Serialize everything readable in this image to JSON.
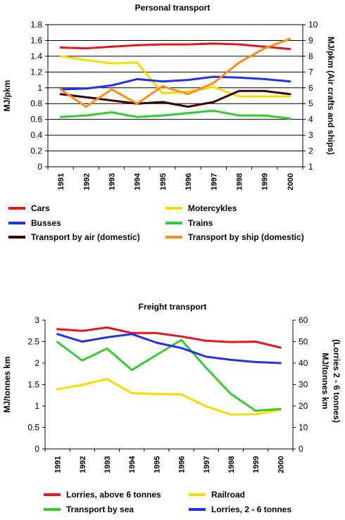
{
  "chart_data": [
    {
      "type": "line",
      "title": "Personal transport",
      "ylabel": "MJ/pkm",
      "y2label": "MJ/pkm (Air crafts and ships)",
      "ylim": [
        0,
        1.8
      ],
      "y_ticks": [
        "0",
        "0.2",
        "0.4",
        "0.6",
        "0.8",
        "1",
        "1.2",
        "1.4",
        "1.6",
        "1.8"
      ],
      "y2lim": [
        1,
        10
      ],
      "y2_ticks": [
        "1",
        "2",
        "3",
        "4",
        "5",
        "6",
        "7",
        "8",
        "9",
        "10"
      ],
      "categories": [
        "1991",
        "1992",
        "1993",
        "1994",
        "1995",
        "1996",
        "1997",
        "1998",
        "1999",
        "2000"
      ],
      "grid": "horizontal",
      "legend": "bottom",
      "series": [
        {
          "name": "Cars",
          "axis": "left",
          "color": "#e8161b",
          "values": [
            1.51,
            1.5,
            1.52,
            1.54,
            1.55,
            1.55,
            1.56,
            1.55,
            1.52,
            1.49
          ]
        },
        {
          "name": "Motercykles",
          "axis": "left",
          "color": "#ffd700",
          "values": [
            1.4,
            1.35,
            1.31,
            1.32,
            0.93,
            0.95,
            1.01,
            0.89,
            0.89,
            0.89
          ]
        },
        {
          "name": "Busses",
          "axis": "left",
          "color": "#2233e6",
          "values": [
            0.98,
            0.99,
            1.03,
            1.11,
            1.08,
            1.1,
            1.14,
            1.13,
            1.11,
            1.08
          ]
        },
        {
          "name": "Trains",
          "axis": "left",
          "color": "#33cc33",
          "values": [
            0.63,
            0.65,
            0.69,
            0.63,
            0.65,
            0.68,
            0.71,
            0.65,
            0.65,
            0.61
          ]
        },
        {
          "name": "Transport by air (domestic)",
          "axis": "right",
          "color": "#3d0000",
          "values": [
            5.6,
            5.4,
            5.2,
            5.0,
            5.1,
            4.8,
            5.1,
            5.8,
            5.8,
            5.6
          ]
        },
        {
          "name": "Transport by ship (domestic)",
          "axis": "right",
          "color": "#ff8c1a",
          "values": [
            5.9,
            4.8,
            5.9,
            5.0,
            6.1,
            5.6,
            6.3,
            7.6,
            8.5,
            9.1
          ]
        }
      ]
    },
    {
      "type": "line",
      "title": "Freight transport",
      "ylabel": "MJ/tonnes km",
      "y2label": "MJ/tonnes km (Lorries 2 - 6 tonnes)",
      "ylim": [
        0,
        3
      ],
      "y_ticks": [
        "0",
        "0.5",
        "1",
        "1.5",
        "2",
        "2.5",
        "3"
      ],
      "y2lim": [
        0,
        60
      ],
      "y2_ticks": [
        "0",
        "10",
        "20",
        "30",
        "40",
        "50",
        "60"
      ],
      "categories": [
        "1991",
        "1992",
        "1993",
        "1994",
        "1995",
        "1996",
        "1997",
        "1998",
        "1999",
        "2000"
      ],
      "grid": "none",
      "legend": "bottom",
      "series": [
        {
          "name": "Lorries, above 6 tonnes",
          "axis": "left",
          "color": "#e8161b",
          "values": [
            2.79,
            2.75,
            2.83,
            2.7,
            2.7,
            2.62,
            2.52,
            2.49,
            2.5,
            2.36
          ]
        },
        {
          "name": "Railroad",
          "axis": "left",
          "color": "#ffd700",
          "values": [
            1.39,
            1.49,
            1.63,
            1.3,
            1.28,
            1.27,
            0.99,
            0.8,
            0.81,
            0.91
          ]
        },
        {
          "name": "Transport by sea",
          "axis": "left",
          "color": "#33cc33",
          "values": [
            2.49,
            2.06,
            2.34,
            1.84,
            2.19,
            2.54,
            1.89,
            1.28,
            0.89,
            0.93
          ]
        },
        {
          "name": "Lorries, 2 - 6 tonnes",
          "axis": "right",
          "color": "#2233e6",
          "values": [
            53.5,
            50.0,
            52.0,
            53.5,
            49.5,
            47.0,
            43.0,
            41.5,
            40.5,
            40.0
          ]
        }
      ]
    }
  ]
}
